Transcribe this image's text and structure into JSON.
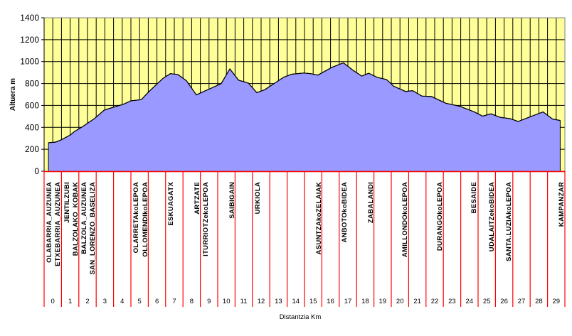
{
  "chart_data": {
    "type": "area",
    "title": "",
    "xlabel": "Distantzia Km",
    "ylabel": "Altuera m",
    "xlim": [
      0,
      30
    ],
    "ylim": [
      0,
      1400
    ],
    "yticks": [
      0,
      200,
      400,
      600,
      800,
      1000,
      1200,
      1400
    ],
    "grid": true,
    "colors": {
      "plot_bg": "#FFFF99",
      "area": "#9999FF",
      "line": "#000000",
      "separator": "#FF0000",
      "grid": "#000000"
    },
    "profile": {
      "x": [
        0.25,
        0.65,
        1.0,
        1.5,
        1.75,
        2.2,
        2.9,
        3.45,
        3.85,
        4.55,
        5.0,
        5.6,
        6.05,
        6.85,
        7.27,
        7.7,
        8.2,
        8.77,
        9.2,
        9.73,
        10.2,
        10.7,
        11.2,
        11.77,
        12.25,
        12.7,
        13.8,
        14.26,
        14.95,
        15.36,
        15.77,
        16.59,
        17.24,
        17.82,
        18.3,
        18.7,
        19.18,
        19.73,
        20.14,
        20.82,
        21.23,
        21.77,
        22.32,
        23.14,
        23.96,
        24.78,
        25.26,
        25.74,
        26.28,
        26.83,
        27.31,
        27.92,
        28.74,
        29.29,
        29.73
      ],
      "y": [
        260,
        265,
        287,
        330,
        362,
        405,
        480,
        556,
        577,
        610,
        642,
        653,
        728,
        847,
        890,
        883,
        825,
        696,
        728,
        765,
        800,
        933,
        831,
        804,
        717,
        743,
        857,
        885,
        896,
        890,
        877,
        948,
        989,
        918,
        868,
        894,
        857,
        836,
        775,
        728,
        735,
        685,
        681,
        620,
        592,
        541,
        502,
        523,
        491,
        480,
        454,
        491,
        541,
        476,
        463
      ]
    },
    "km_labels": [
      "0",
      "1",
      "2",
      "3",
      "4",
      "5",
      "6",
      "7",
      "8",
      "9",
      "10",
      "11",
      "12",
      "13",
      "14",
      "15",
      "16",
      "17",
      "18",
      "19",
      "20",
      "21",
      "22",
      "23",
      "24",
      "25",
      "26",
      "27",
      "28",
      "29"
    ],
    "locations": [
      {
        "km": 0.25,
        "name": "OLABARRIA_AUZUNEA"
      },
      {
        "km": 0.74,
        "name": "ETXEBARRIA_AUZUNEA"
      },
      {
        "km": 1.27,
        "name": "JENTILZUBI"
      },
      {
        "km": 1.76,
        "name": "BALZOLAKO_KOBAK"
      },
      {
        "km": 2.25,
        "name": "BALZOLA_AUZUNEA"
      },
      {
        "km": 2.75,
        "name": "SAN_LORENZO_BASELIZA"
      },
      {
        "km": 5.25,
        "name": "OLARRETAkoLEPOA"
      },
      {
        "km": 5.78,
        "name": "OLLOMENDIkoLEPOA"
      },
      {
        "km": 7.25,
        "name": "ESKUAGATX"
      },
      {
        "km": 8.77,
        "name": "ARTZATE"
      },
      {
        "km": 9.26,
        "name": "ITURRIOTZekoLEPOA"
      },
      {
        "km": 10.78,
        "name": "SAIBIGAIN"
      },
      {
        "km": 12.25,
        "name": "URKIOLA"
      },
      {
        "km": 15.78,
        "name": "ASUNTZAkoZELAIAK"
      },
      {
        "km": 17.25,
        "name": "ANBOTOkoBIDEA"
      },
      {
        "km": 18.77,
        "name": "ZABALANDI"
      },
      {
        "km": 20.74,
        "name": "AMILLONDOkoLEPOA"
      },
      {
        "km": 22.75,
        "name": "DURANGOkoLEPOA"
      },
      {
        "km": 24.72,
        "name": "BESAIDE"
      },
      {
        "km": 25.74,
        "name": "UDALAITZekoBIDEA"
      },
      {
        "km": 26.72,
        "name": "SANTA.LUZIAkoLEPOA"
      },
      {
        "km": 29.75,
        "name": "KAMPANZAR"
      }
    ]
  }
}
